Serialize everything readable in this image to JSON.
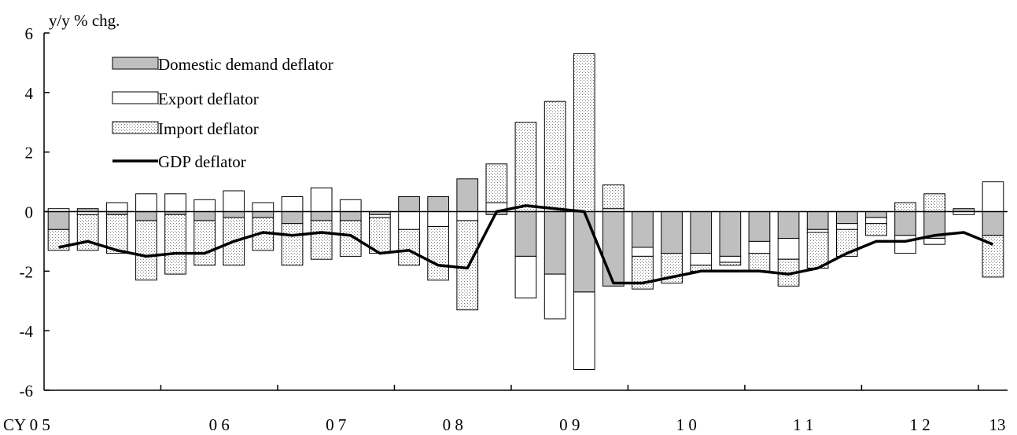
{
  "chart_data": {
    "type": "bar",
    "ylabel": "y/y % chg.",
    "ylim": [
      -6,
      6
    ],
    "yticks": [
      6,
      4,
      2,
      0,
      -2,
      -4,
      -6
    ],
    "x_labels": [
      "CY 0 5",
      "0 6",
      "0 7",
      "0 8",
      "0 9",
      "1 0",
      "1 1",
      "1 2",
      "13"
    ],
    "stacked": true,
    "legend_position": "top-left",
    "series": [
      {
        "name": "Domestic demand deflator",
        "kind": "bar",
        "fill": "#bfbfbf",
        "values": [
          -0.6,
          0.1,
          -0.1,
          -0.3,
          -0.1,
          -0.3,
          -0.2,
          -0.2,
          -0.4,
          -0.3,
          -0.3,
          -0.1,
          0.5,
          0.5,
          1.1,
          -0.1,
          -1.5,
          -2.1,
          -2.7,
          -2.5,
          -1.2,
          -1.4,
          -1.4,
          -1.5,
          -1.0,
          -0.9,
          -0.6,
          -0.4,
          -0.2,
          -0.8,
          -0.9,
          0.1,
          -0.8
        ]
      },
      {
        "name": "Export deflator",
        "kind": "bar",
        "fill": "#ffffff",
        "values": [
          0.1,
          -0.1,
          0.3,
          0.6,
          0.6,
          0.4,
          0.7,
          0.3,
          0.5,
          0.8,
          0.4,
          -0.1,
          -0.6,
          -0.5,
          -0.3,
          0.3,
          -1.4,
          -1.5,
          -2.6,
          0.1,
          -0.3,
          0.0,
          -0.4,
          -0.2,
          -0.4,
          -0.7,
          -0.1,
          -0.2,
          -0.2,
          -0.6,
          -0.2,
          -0.1,
          1.0
        ]
      },
      {
        "name": "Import deflator",
        "kind": "bar",
        "fill": "#ebebeb",
        "values": [
          -0.7,
          -1.2,
          -1.3,
          -2.0,
          -2.0,
          -1.5,
          -1.6,
          -1.1,
          -1.4,
          -1.3,
          -1.2,
          -1.2,
          -1.2,
          -1.8,
          -3.0,
          1.3,
          3.0,
          3.7,
          5.3,
          0.8,
          -1.1,
          -1.0,
          -0.2,
          -0.1,
          -0.6,
          -0.9,
          -1.2,
          -0.9,
          -0.4,
          0.3,
          0.6,
          0.0,
          -1.4
        ]
      },
      {
        "name": "GDP deflator",
        "kind": "line",
        "color": "#000000",
        "values": [
          -1.2,
          -1.0,
          -1.3,
          -1.5,
          -1.4,
          -1.4,
          -1.0,
          -0.7,
          -0.8,
          -0.7,
          -0.8,
          -1.4,
          -1.3,
          -1.8,
          -1.9,
          0.0,
          0.2,
          0.1,
          0.0,
          -2.4,
          -2.4,
          -2.2,
          -2.0,
          -2.0,
          -2.0,
          -2.1,
          -1.9,
          -1.4,
          -1.0,
          -1.0,
          -0.8,
          -0.7,
          -1.1
        ]
      }
    ]
  }
}
